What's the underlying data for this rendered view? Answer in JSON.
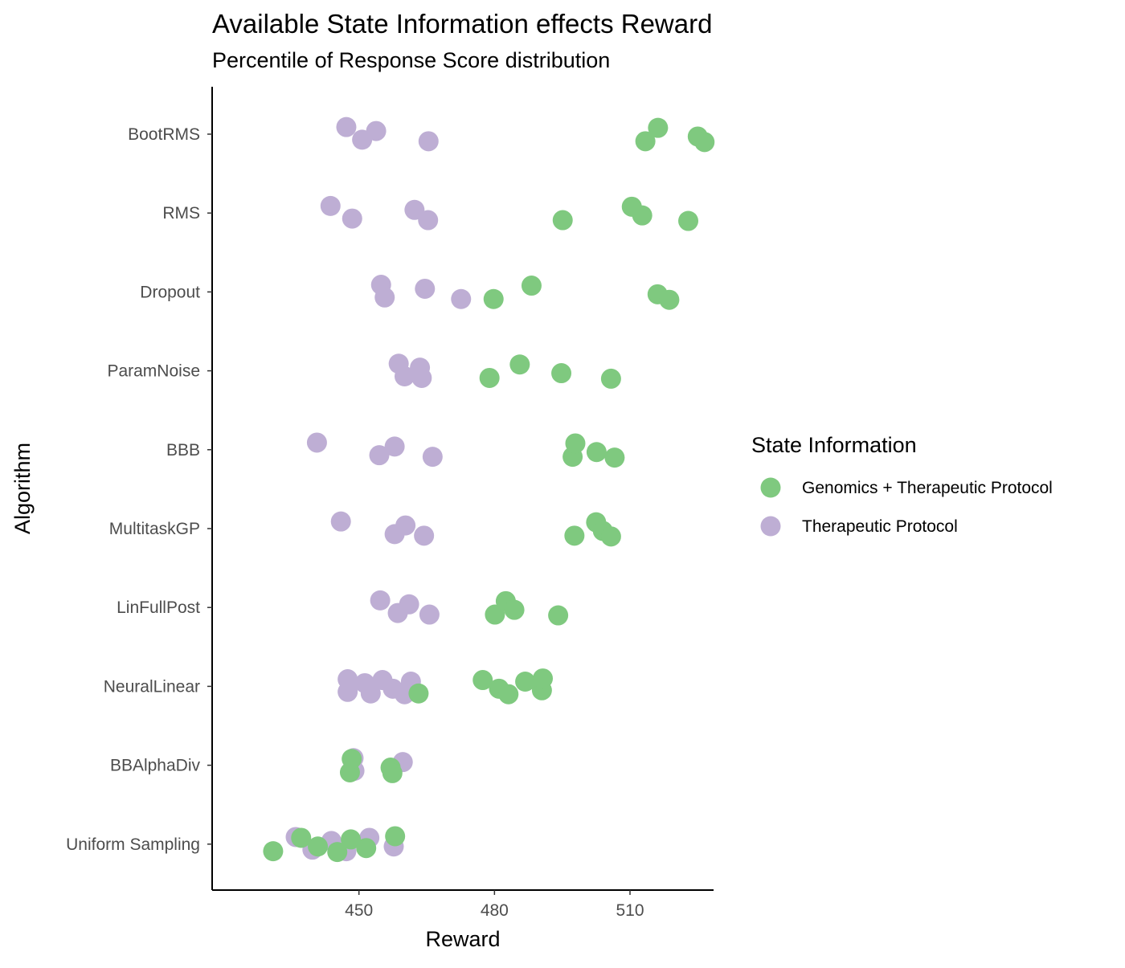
{
  "chart_data": {
    "type": "scatter",
    "title": "Available State Information effects Reward",
    "subtitle": "Percentile of Response Score distribution",
    "xlabel": "Reward",
    "ylabel": "Algorithm",
    "xlim": [
      417.5,
      528.5
    ],
    "xticks": [
      450,
      480,
      510
    ],
    "categories": [
      "BootRMS",
      "RMS",
      "Dropout",
      "ParamNoise",
      "BBB",
      "MultitaskGP",
      "LinFullPost",
      "NeuralLinear",
      "BBAlphaDiv",
      "Uniform Sampling"
    ],
    "grid": false,
    "legend": {
      "title": "State Information",
      "position": "right"
    },
    "series": [
      {
        "name": "Therapeutic Protocol",
        "color": "#beaed4",
        "points": [
          {
            "category": "BootRMS",
            "values": [
              447.2,
              450.7,
              453.8,
              465.4
            ]
          },
          {
            "category": "RMS",
            "values": [
              443.7,
              448.5,
              462.3,
              465.3
            ]
          },
          {
            "category": "Dropout",
            "values": [
              454.9,
              455.7,
              464.6,
              472.6
            ]
          },
          {
            "category": "ParamNoise",
            "values": [
              458.8,
              460.1,
              463.5,
              463.9
            ]
          },
          {
            "category": "BBB",
            "values": [
              440.7,
              454.5,
              457.9,
              466.3
            ]
          },
          {
            "category": "MultitaskGP",
            "values": [
              446.0,
              457.9,
              460.3,
              464.4
            ]
          },
          {
            "category": "LinFullPost",
            "values": [
              454.7,
              458.6,
              461.1,
              465.6
            ]
          },
          {
            "category": "NeuralLinear",
            "values": [
              447.5,
              447.5,
              451.3,
              452.6,
              455.2,
              457.5,
              460.1,
              461.5
            ]
          },
          {
            "category": "BBAlphaDiv",
            "values": [
              448.8,
              449.0,
              459.7
            ]
          },
          {
            "category": "Uniform Sampling",
            "values": [
              436.0,
              439.7,
              443.9,
              447.2,
              452.3,
              457.7
            ]
          }
        ]
      },
      {
        "name": "Genomics + Therapeutic Protocol",
        "color": "#7fc97f",
        "points": [
          {
            "category": "BootRMS",
            "values": [
              513.4,
              516.2,
              525.0,
              526.5
            ]
          },
          {
            "category": "RMS",
            "values": [
              495.1,
              510.4,
              512.7,
              522.9
            ]
          },
          {
            "category": "Dropout",
            "values": [
              479.8,
              488.2,
              516.1,
              518.7
            ]
          },
          {
            "category": "ParamNoise",
            "values": [
              478.9,
              485.6,
              494.8,
              505.8
            ]
          },
          {
            "category": "BBB",
            "values": [
              497.3,
              497.9,
              502.6,
              506.6
            ]
          },
          {
            "category": "MultitaskGP",
            "values": [
              497.7,
              502.5,
              504.0,
              505.8
            ]
          },
          {
            "category": "LinFullPost",
            "values": [
              480.1,
              482.5,
              484.4,
              494.1
            ]
          },
          {
            "category": "NeuralLinear",
            "values": [
              463.2,
              477.4,
              481.0,
              483.1,
              486.8,
              490.5,
              490.7
            ]
          },
          {
            "category": "BBAlphaDiv",
            "values": [
              448.0,
              448.4,
              457.0,
              457.4
            ]
          },
          {
            "category": "Uniform Sampling",
            "values": [
              431.0,
              437.2,
              440.9,
              445.2,
              448.2,
              451.6,
              458.0
            ]
          }
        ]
      }
    ]
  }
}
